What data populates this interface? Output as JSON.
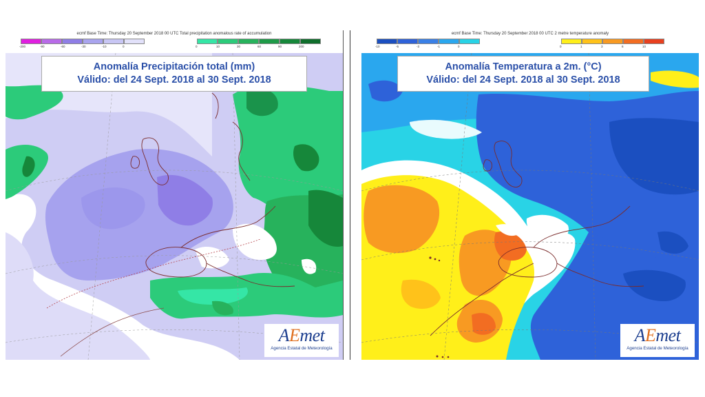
{
  "left_map": {
    "header": "ecmf  Base Time: Thursday 20 September 2018 00 UTC Total precipitation anomalous rate of accumulation",
    "legend_neg": {
      "colors": [
        "#e01fe0",
        "#b86be8",
        "#8f7ee6",
        "#a9a4ee",
        "#c8c6f4",
        "#e2e1fa"
      ],
      "ticks": [
        "-200",
        "-90",
        "-60",
        "-30",
        "-10",
        "0"
      ]
    },
    "legend_pos": {
      "colors": [
        "#35e6a6",
        "#2ccb7a",
        "#27b25c",
        "#1e9a48",
        "#16873a",
        "#0f6e2c"
      ],
      "ticks": [
        "0",
        "10",
        "30",
        "60",
        "90",
        "200"
      ]
    },
    "title_line1": "Anomalía Precipitación total (mm)",
    "title_line2": "Válido: del 24 Sept. 2018 al 30 Sept. 2018"
  },
  "right_map": {
    "header": "ecmf  Base Time: Thursday 20 September 2018 00 UTC 2 metre temperature anomaly",
    "legend_neg": {
      "colors": [
        "#1b4fc0",
        "#2e62d9",
        "#3a80e6",
        "#2aa7ee",
        "#29d3e6"
      ],
      "ticks": [
        "-10",
        "-5",
        "-3",
        "-1",
        "0"
      ]
    },
    "legend_pos": {
      "colors": [
        "#ffef1a",
        "#ffc21a",
        "#f89a22",
        "#f26d22",
        "#e8401f"
      ],
      "ticks": [
        "0",
        "1",
        "3",
        "6",
        "10"
      ]
    },
    "title_line1": "Anomalía Temperatura a 2m. (°C)",
    "title_line2": "Válido: del 24 Sept. 2018 al 30 Sept. 2018"
  },
  "logo": {
    "wordmark_a": "A",
    "wordmark_e": "E",
    "wordmark_rest": "met",
    "subtitle": "Agencia Estatal de Meteorología"
  }
}
